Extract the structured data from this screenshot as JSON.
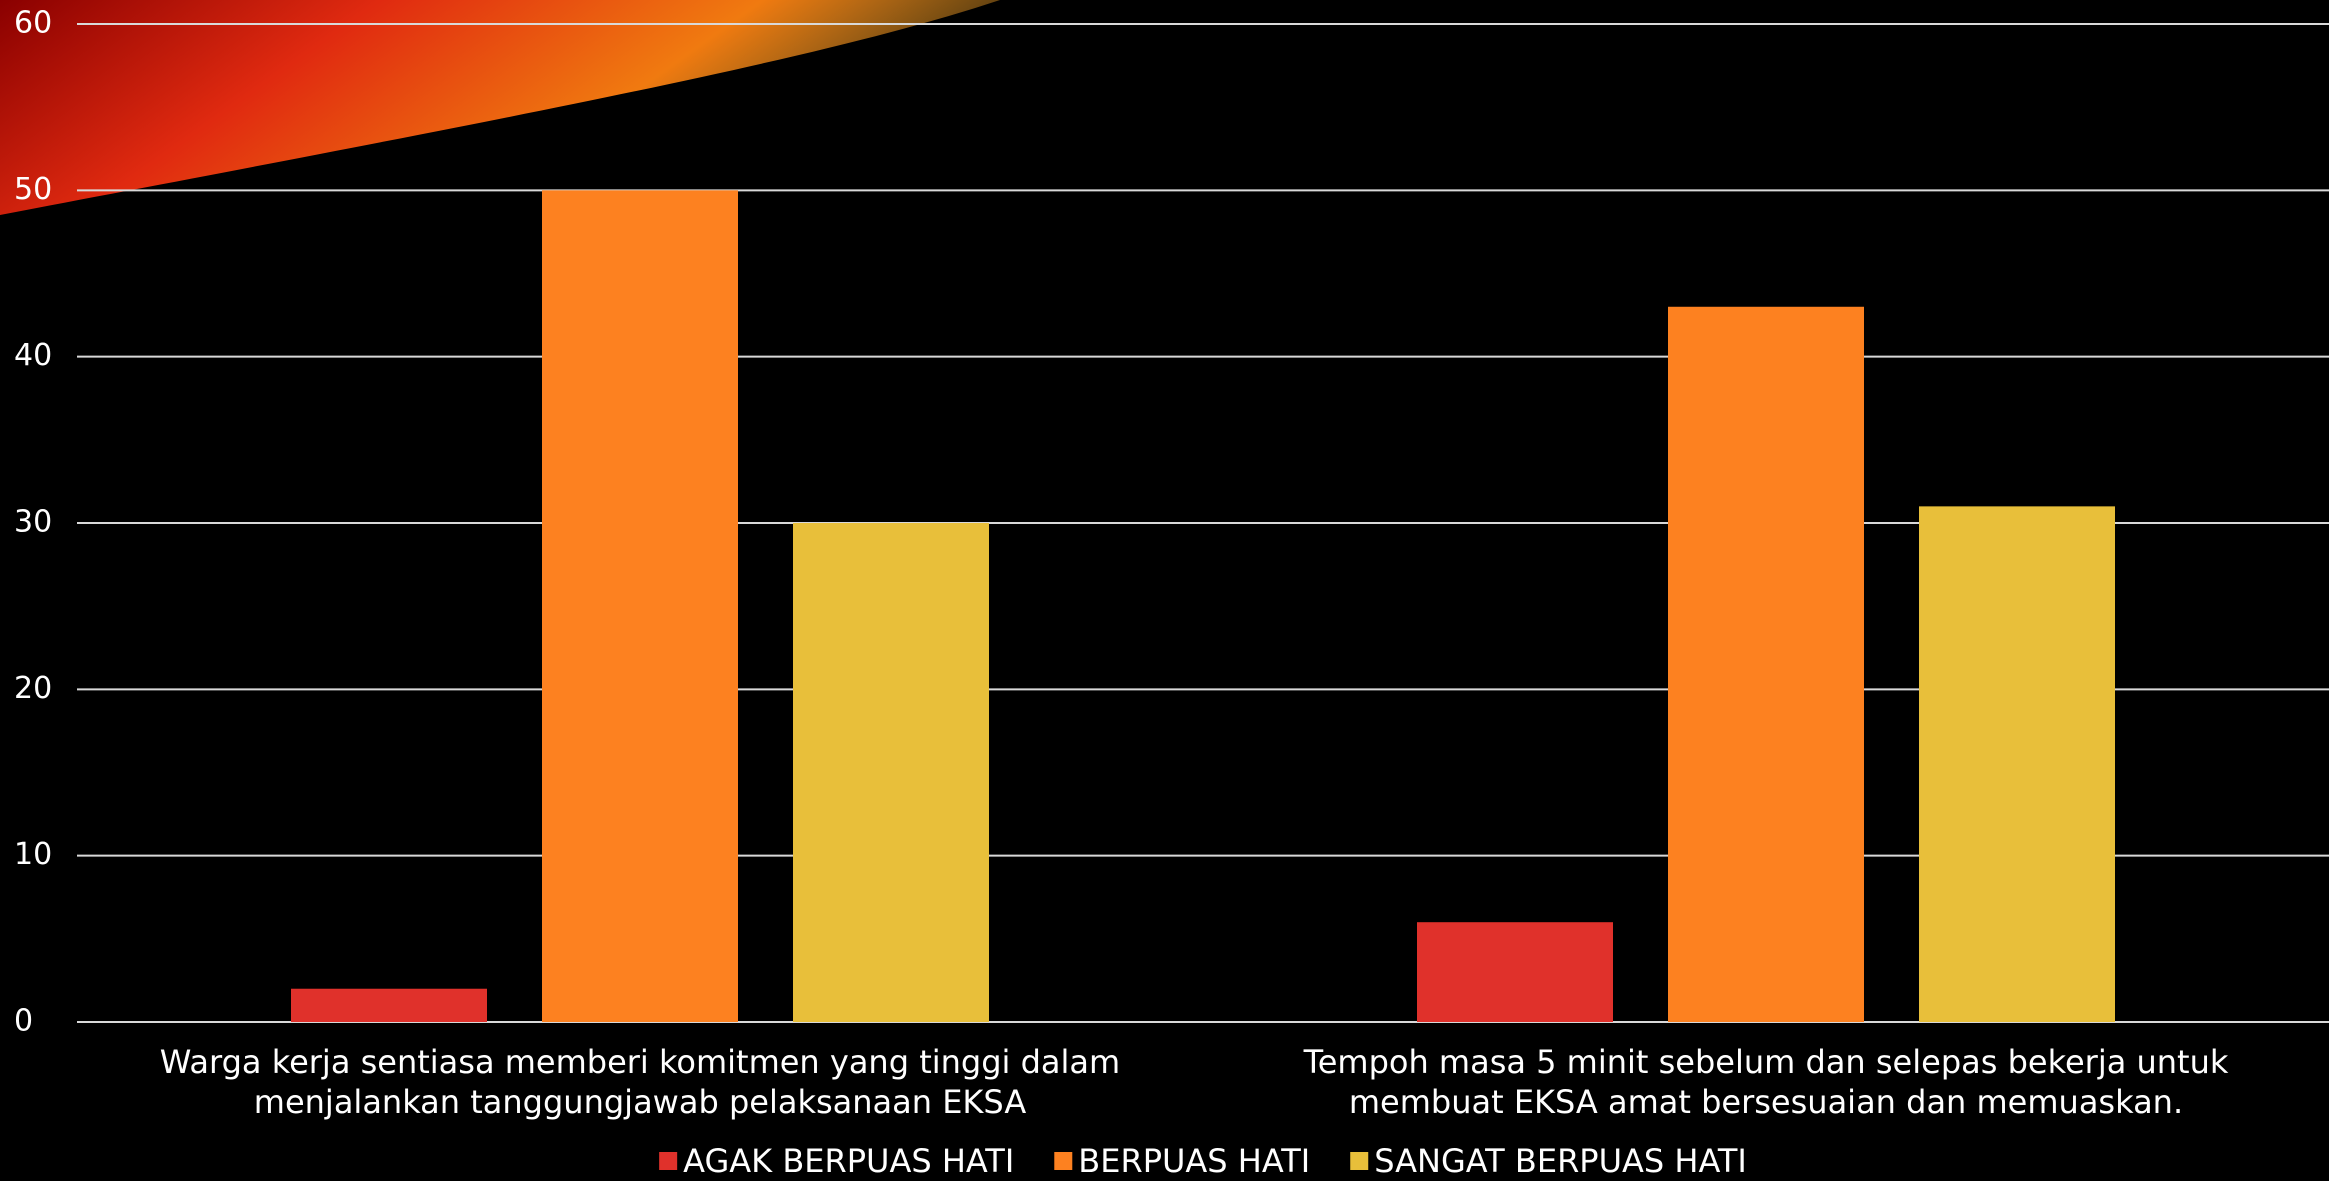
{
  "chart_data": {
    "type": "bar",
    "categories": [
      "Warga kerja sentiasa memberi komitmen yang tinggi dalam menjalankan tanggungjawab pelaksanaan EKSA",
      "Tempoh masa 5 minit sebelum dan selepas bekerja untuk membuat EKSA amat bersesuaian dan memuaskan."
    ],
    "series": [
      {
        "name": "AGAK BERPUAS HATI",
        "color": "#e0312b",
        "values": [
          2,
          6
        ]
      },
      {
        "name": "BERPUAS HATI",
        "color": "#fd8120",
        "values": [
          50,
          43
        ]
      },
      {
        "name": "SANGAT BERPUAS HATI",
        "color": "#e8bf3a",
        "values": [
          30,
          31
        ]
      }
    ],
    "ylim": [
      0,
      60
    ],
    "yticks": [
      0,
      10,
      20,
      30,
      40,
      50,
      60
    ],
    "grid": true,
    "legend": "bottom"
  }
}
